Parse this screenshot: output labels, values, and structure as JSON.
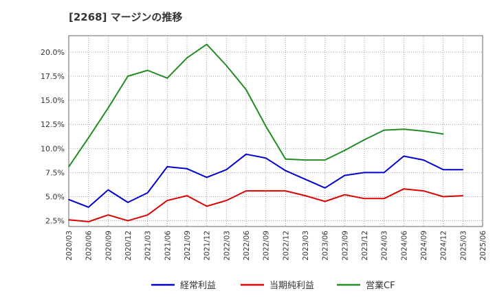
{
  "title": "[2268]  マージンの推移",
  "chart_data": {
    "type": "line",
    "title": "[2268]  マージンの推移",
    "xlabel": "",
    "ylabel": "",
    "ylim": [
      1.9,
      21.7
    ],
    "yticks": [
      "2.5%",
      "5.0%",
      "7.5%",
      "10.0%",
      "12.5%",
      "15.0%",
      "17.5%",
      "20.0%"
    ],
    "ytick_values": [
      2.5,
      5.0,
      7.5,
      10.0,
      12.5,
      15.0,
      17.5,
      20.0
    ],
    "x": [
      "2020/03",
      "2020/06",
      "2020/09",
      "2020/12",
      "2021/03",
      "2021/06",
      "2021/09",
      "2021/12",
      "2022/03",
      "2022/06",
      "2022/09",
      "2022/12",
      "2023/03",
      "2023/06",
      "2023/09",
      "2023/12",
      "2024/03",
      "2024/06",
      "2024/09",
      "2024/12",
      "2025/03",
      "2025/06"
    ],
    "grid": true,
    "legend_position": "bottom",
    "series": [
      {
        "name": "経常利益",
        "color": "#0000cc",
        "values": [
          4.7,
          3.9,
          5.7,
          4.4,
          5.4,
          8.1,
          7.9,
          7.0,
          7.8,
          9.4,
          9.0,
          7.7,
          6.8,
          5.9,
          7.2,
          7.5,
          7.5,
          9.2,
          8.8,
          7.8,
          7.8,
          null
        ]
      },
      {
        "name": "当期純利益",
        "color": "#dd0000",
        "values": [
          2.6,
          2.4,
          3.1,
          2.5,
          3.1,
          4.6,
          5.1,
          4.0,
          4.6,
          5.6,
          5.6,
          5.6,
          5.1,
          4.5,
          5.2,
          4.8,
          4.8,
          5.8,
          5.6,
          5.0,
          5.1,
          null
        ]
      },
      {
        "name": "営業CF",
        "color": "#228b22",
        "values": [
          8.1,
          11.1,
          14.2,
          17.5,
          18.1,
          17.3,
          19.4,
          20.8,
          18.6,
          16.1,
          12.3,
          8.9,
          8.8,
          8.8,
          9.8,
          10.9,
          11.9,
          12.0,
          11.8,
          11.5,
          null,
          null
        ]
      }
    ]
  }
}
